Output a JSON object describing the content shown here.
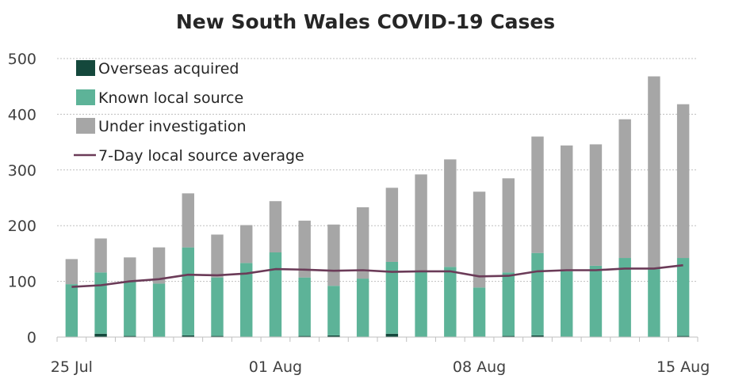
{
  "chart_data": {
    "type": "bar",
    "stacked": true,
    "title": "New South Wales COVID-19 Cases",
    "xlabel": "",
    "ylabel": "",
    "ylim": [
      0,
      500
    ],
    "yticks": [
      0,
      100,
      200,
      300,
      400,
      500
    ],
    "x_tick_labels": [
      {
        "index": 0,
        "label": "25 Jul"
      },
      {
        "index": 7,
        "label": "01 Aug"
      },
      {
        "index": 14,
        "label": "08 Aug"
      },
      {
        "index": 21,
        "label": "15 Aug"
      }
    ],
    "grid": "horizontal dotted",
    "legend_position": "top-left",
    "categories": [
      "25 Jul",
      "26 Jul",
      "27 Jul",
      "28 Jul",
      "29 Jul",
      "30 Jul",
      "31 Jul",
      "01 Aug",
      "02 Aug",
      "03 Aug",
      "04 Aug",
      "05 Aug",
      "06 Aug",
      "07 Aug",
      "08 Aug",
      "09 Aug",
      "10 Aug",
      "11 Aug",
      "12 Aug",
      "13 Aug",
      "14 Aug",
      "15 Aug"
    ],
    "series": [
      {
        "name": "Overseas acquired",
        "color": "#14483c",
        "values": [
          0,
          6,
          2,
          0,
          3,
          2,
          0,
          1,
          2,
          3,
          0,
          6,
          0,
          0,
          1,
          2,
          3,
          1,
          0,
          0,
          0,
          2
        ]
      },
      {
        "name": "Known local source",
        "color": "#5db398",
        "values": [
          95,
          110,
          98,
          96,
          158,
          105,
          133,
          151,
          105,
          89,
          105,
          129,
          118,
          126,
          88,
          114,
          148,
          117,
          128,
          142,
          122,
          140
        ]
      },
      {
        "name": "Under investigation",
        "color": "#a6a6a6",
        "values": [
          45,
          61,
          43,
          65,
          97,
          77,
          68,
          92,
          102,
          110,
          128,
          133,
          174,
          193,
          172,
          169,
          209,
          226,
          218,
          249,
          346,
          276
        ]
      },
      {
        "name": "7-Day local source average",
        "color": "#6b3b58",
        "type": "line",
        "values": [
          90,
          93,
          100,
          104,
          112,
          111,
          114,
          122,
          121,
          119,
          120,
          117,
          118,
          118,
          109,
          110,
          118,
          120,
          120,
          123,
          123,
          129
        ]
      }
    ]
  }
}
